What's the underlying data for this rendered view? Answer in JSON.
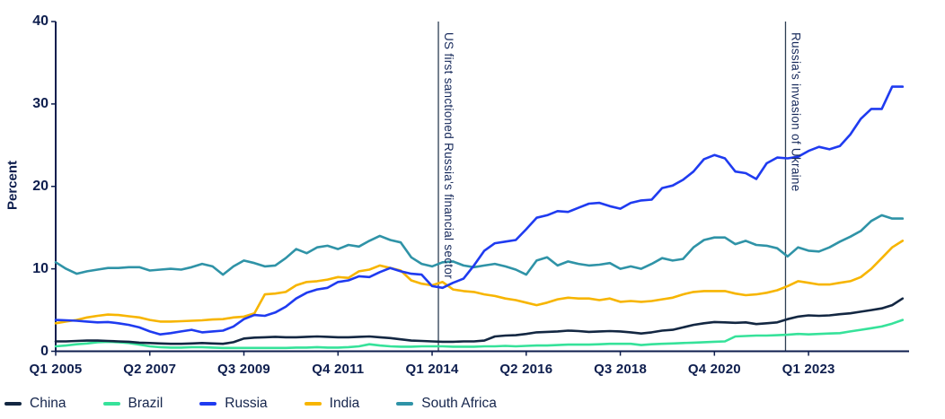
{
  "colors": {
    "background": "#ffffff",
    "axis": "#0e1e4e",
    "axis_text": "#0e1e4e",
    "legend_text": "#15254c",
    "annotation_line": "#2d3e53",
    "annotation_text": "#16295b",
    "china": "#132742",
    "brazil": "#36e29a",
    "russia": "#1f3bf0",
    "india": "#f7b500",
    "south_africa": "#2f93a7"
  },
  "chart_data": {
    "type": "line",
    "title": "",
    "ylabel": "Percent",
    "xlabel": "",
    "ylim": [
      0,
      40
    ],
    "yticks": [
      0,
      10,
      20,
      30,
      40
    ],
    "x_unit": "quarter",
    "x_range": [
      "Q1 2005",
      "Q2 2025"
    ],
    "n_points": 82,
    "grid": false,
    "legend_position": "bottom",
    "xticks": [
      {
        "index": 0,
        "label": "Q1 2005"
      },
      {
        "index": 9,
        "label": "Q2 2007"
      },
      {
        "index": 18,
        "label": "Q3 2009"
      },
      {
        "index": 27,
        "label": "Q4 2011"
      },
      {
        "index": 36,
        "label": "Q1 2014"
      },
      {
        "index": 45,
        "label": "Q2 2016"
      },
      {
        "index": 54,
        "label": "Q3 2018"
      },
      {
        "index": 63,
        "label": "Q4 2020"
      },
      {
        "index": 72,
        "label": "Q1 2023"
      }
    ],
    "annotations": [
      {
        "x_index": 36.6,
        "label": "US first sanctioned Russia's financial sector"
      },
      {
        "x_index": 69.8,
        "label": "Russia's invasion of Ukraine"
      }
    ],
    "series": [
      {
        "name": "China",
        "color_key": "china",
        "values": [
          1.2,
          1.2,
          1.25,
          1.3,
          1.3,
          1.25,
          1.2,
          1.15,
          1.05,
          1.0,
          0.95,
          0.9,
          0.9,
          0.95,
          1.0,
          0.95,
          0.9,
          1.1,
          1.55,
          1.65,
          1.7,
          1.75,
          1.7,
          1.7,
          1.75,
          1.8,
          1.75,
          1.7,
          1.7,
          1.75,
          1.8,
          1.7,
          1.6,
          1.45,
          1.3,
          1.25,
          1.2,
          1.15,
          1.15,
          1.2,
          1.2,
          1.3,
          1.8,
          1.9,
          1.95,
          2.1,
          2.3,
          2.35,
          2.4,
          2.5,
          2.45,
          2.35,
          2.4,
          2.45,
          2.4,
          2.3,
          2.15,
          2.3,
          2.5,
          2.6,
          2.9,
          3.2,
          3.4,
          3.55,
          3.5,
          3.45,
          3.5,
          3.3,
          3.4,
          3.5,
          3.9,
          4.2,
          4.35,
          4.3,
          4.35,
          4.5,
          4.6,
          4.8,
          5.0,
          5.2,
          5.6,
          6.4
        ]
      },
      {
        "name": "Brazil",
        "color_key": "brazil",
        "values": [
          0.6,
          0.7,
          0.85,
          0.95,
          1.1,
          1.15,
          1.1,
          1.0,
          0.8,
          0.6,
          0.5,
          0.45,
          0.45,
          0.5,
          0.5,
          0.45,
          0.4,
          0.4,
          0.4,
          0.4,
          0.4,
          0.4,
          0.4,
          0.45,
          0.45,
          0.5,
          0.45,
          0.45,
          0.5,
          0.6,
          0.85,
          0.7,
          0.6,
          0.55,
          0.55,
          0.6,
          0.6,
          0.6,
          0.55,
          0.55,
          0.55,
          0.6,
          0.6,
          0.65,
          0.6,
          0.65,
          0.7,
          0.7,
          0.75,
          0.8,
          0.8,
          0.8,
          0.85,
          0.9,
          0.9,
          0.9,
          0.75,
          0.85,
          0.9,
          0.95,
          1.0,
          1.05,
          1.1,
          1.15,
          1.2,
          1.8,
          1.85,
          1.9,
          1.9,
          1.95,
          2.0,
          2.1,
          2.05,
          2.1,
          2.15,
          2.2,
          2.4,
          2.6,
          2.8,
          3.0,
          3.35,
          3.8
        ]
      },
      {
        "name": "Russia",
        "color_key": "russia",
        "values": [
          3.8,
          3.75,
          3.7,
          3.6,
          3.5,
          3.55,
          3.4,
          3.2,
          2.9,
          2.4,
          2.05,
          2.2,
          2.4,
          2.6,
          2.3,
          2.4,
          2.5,
          3.0,
          3.9,
          4.4,
          4.3,
          4.7,
          5.4,
          6.4,
          7.1,
          7.5,
          7.7,
          8.4,
          8.6,
          9.1,
          9.0,
          9.6,
          10.1,
          9.7,
          9.4,
          9.3,
          7.9,
          7.7,
          8.3,
          8.8,
          10.4,
          12.2,
          13.1,
          13.3,
          13.5,
          14.8,
          16.2,
          16.5,
          17.0,
          16.9,
          17.4,
          17.9,
          18.0,
          17.6,
          17.3,
          18.0,
          18.3,
          18.4,
          19.8,
          20.1,
          20.8,
          21.8,
          23.3,
          23.8,
          23.4,
          21.8,
          21.6,
          20.9,
          22.8,
          23.5,
          23.4,
          23.6,
          24.3,
          24.8,
          24.5,
          24.9,
          26.3,
          28.2,
          29.4,
          29.4,
          32.1,
          32.1
        ]
      },
      {
        "name": "India",
        "color_key": "india",
        "values": [
          3.4,
          3.6,
          3.8,
          4.1,
          4.3,
          4.45,
          4.4,
          4.25,
          4.1,
          3.8,
          3.6,
          3.6,
          3.65,
          3.7,
          3.75,
          3.85,
          3.9,
          4.1,
          4.2,
          4.6,
          6.9,
          7.0,
          7.2,
          8.0,
          8.4,
          8.5,
          8.7,
          9.0,
          8.9,
          9.7,
          9.9,
          10.4,
          10.1,
          9.8,
          8.6,
          8.2,
          8.0,
          8.4,
          7.5,
          7.3,
          7.2,
          6.9,
          6.7,
          6.4,
          6.2,
          5.9,
          5.6,
          5.9,
          6.3,
          6.5,
          6.4,
          6.4,
          6.2,
          6.4,
          6.0,
          6.1,
          6.0,
          6.1,
          6.3,
          6.5,
          6.9,
          7.2,
          7.3,
          7.3,
          7.3,
          7.0,
          6.8,
          6.9,
          7.1,
          7.4,
          7.9,
          8.5,
          8.3,
          8.1,
          8.1,
          8.3,
          8.5,
          9.0,
          10.0,
          11.3,
          12.6,
          13.4
        ]
      },
      {
        "name": "South Africa",
        "color_key": "south_africa",
        "values": [
          10.8,
          10.0,
          9.4,
          9.7,
          9.9,
          10.1,
          10.1,
          10.2,
          10.2,
          9.8,
          9.9,
          10.0,
          9.9,
          10.2,
          10.6,
          10.3,
          9.3,
          10.3,
          11.0,
          10.7,
          10.3,
          10.4,
          11.3,
          12.4,
          11.9,
          12.6,
          12.8,
          12.4,
          12.9,
          12.7,
          13.4,
          14.0,
          13.5,
          13.2,
          11.4,
          10.6,
          10.3,
          10.8,
          10.9,
          10.4,
          10.2,
          10.4,
          10.6,
          10.3,
          9.9,
          9.3,
          11.0,
          11.4,
          10.4,
          10.9,
          10.6,
          10.4,
          10.5,
          10.7,
          10.0,
          10.3,
          10.0,
          10.6,
          11.3,
          11.0,
          11.2,
          12.6,
          13.5,
          13.8,
          13.8,
          13.0,
          13.4,
          12.9,
          12.8,
          12.5,
          11.5,
          12.6,
          12.2,
          12.1,
          12.6,
          13.3,
          13.9,
          14.6,
          15.8,
          16.5,
          16.1,
          16.1
        ]
      }
    ]
  },
  "legend": {
    "order": [
      "China",
      "Brazil",
      "Russia",
      "India",
      "South Africa"
    ]
  }
}
